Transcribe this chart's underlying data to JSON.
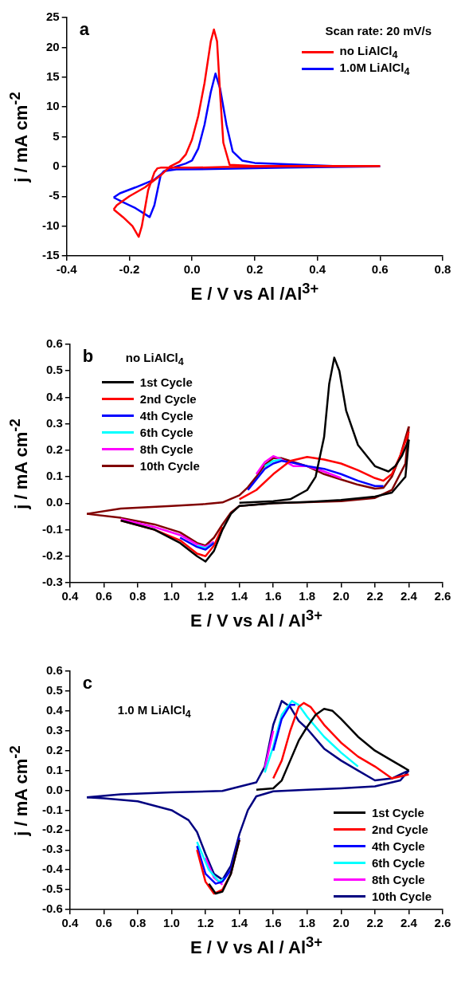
{
  "chart_data": [
    {
      "type": "line",
      "title": "a",
      "subtitle": "Scan rate: 20 mV/s",
      "xlabel": "E / V vs Al /Al$^{3+}$",
      "ylabel": "j / mA cm$^{-2}$",
      "xlim": [
        -0.4,
        0.8
      ],
      "xticks": [
        -0.4,
        -0.2,
        {
          "value": 0,
          "label": "0.0"
        },
        0.2,
        0.4,
        0.6,
        0.8
      ],
      "ylim": [
        -15,
        25
      ],
      "yticks": [
        -15,
        -10,
        -5,
        0,
        5,
        10,
        15,
        20,
        25
      ],
      "legend": "top right",
      "series": [
        {
          "name": "no LiAlCl$_{4}$",
          "color": "#ff0000",
          "x": [
            0.6,
            0.3,
            0.1,
            0,
            -0.1,
            -0.11,
            -0.12,
            -0.14,
            -0.16,
            -0.17,
            -0.19,
            -0.22,
            -0.25
          ],
          "values": [
            0.1,
            0,
            -0.1,
            -0.2,
            -0.2,
            -0.3,
            -1,
            -4,
            -10,
            -11.8,
            -10,
            -8.5,
            -7.2
          ]
        },
        {
          "color": "#ff0000",
          "x": [
            -0.25,
            -0.24,
            -0.2,
            -0.15,
            -0.1,
            -0.07,
            -0.04,
            -0.02,
            0,
            0.02,
            0.04,
            0.06,
            0.07,
            0.08,
            0.09,
            0.1,
            0.12,
            0.2,
            0.4,
            0.6
          ],
          "values": [
            -7.2,
            -6.5,
            -5,
            -3.5,
            -1.5,
            0,
            0.8,
            2,
            4.5,
            8.5,
            14,
            21,
            23,
            21,
            12,
            4,
            0.3,
            0.1,
            0.1,
            0.1
          ]
        },
        {
          "name": "1.0M LiAlCl$_{4}$",
          "color": "#0000ff",
          "x": [
            0.6,
            0.3,
            0.1,
            -0.05,
            -0.09,
            -0.1,
            -0.11,
            -0.12,
            -0.135,
            -0.15,
            -0.18,
            -0.22,
            -0.25
          ],
          "values": [
            0,
            -0.2,
            -0.4,
            -0.5,
            -0.8,
            -1.5,
            -4,
            -6.5,
            -8.5,
            -8,
            -7,
            -6,
            -5.2
          ]
        },
        {
          "color": "#0000ff",
          "x": [
            -0.25,
            -0.23,
            -0.18,
            -0.12,
            -0.08,
            -0.05,
            -0.02,
            0,
            0.02,
            0.04,
            0.06,
            0.075,
            0.09,
            0.11,
            0.13,
            0.16,
            0.2,
            0.3,
            0.45,
            0.6
          ],
          "values": [
            -5.2,
            -4.5,
            -3.5,
            -2.2,
            -0.5,
            0,
            0.5,
            1,
            3,
            7,
            12.5,
            15.6,
            13,
            7,
            2.5,
            1,
            0.6,
            0.4,
            0.1,
            0
          ]
        }
      ]
    },
    {
      "type": "line",
      "title": "b",
      "subtitle": "no LiAlCl$_{4}$",
      "xlabel": "E / V vs Al / Al$^{3+}$",
      "ylabel": "j / mA cm$^{-2}$",
      "xlim": [
        0.4,
        2.6
      ],
      "xticks": [
        0.4,
        0.6,
        0.8,
        {
          "value": 1,
          "label": "1.0"
        },
        1.2,
        1.4,
        1.6,
        1.8,
        {
          "value": 2,
          "label": "2.0"
        },
        2.2,
        2.4,
        2.6
      ],
      "ylim": [
        -0.3,
        0.6
      ],
      "yticks": [
        -0.3,
        -0.2,
        -0.1,
        {
          "value": 0,
          "label": "0.0"
        },
        0.1,
        0.2,
        0.3,
        0.4,
        0.5,
        0.6
      ],
      "legend": "top left",
      "series": [
        {
          "name": "1st Cycle",
          "color": "#000000",
          "x": [
            1.4,
            1.6,
            1.7,
            1.8,
            1.85,
            1.9,
            1.93,
            1.96,
            1.99,
            2.03,
            2.1,
            2.2,
            2.28,
            2.32,
            2.36,
            2.4
          ],
          "values": [
            0.002,
            0.008,
            0.015,
            0.05,
            0.1,
            0.25,
            0.45,
            0.55,
            0.5,
            0.35,
            0.22,
            0.14,
            0.12,
            0.14,
            0.18,
            0.24
          ]
        },
        {
          "color": "#000000",
          "x": [
            2.4,
            2.38,
            2.3,
            2.2,
            2.0,
            1.8,
            1.6,
            1.4,
            1.35,
            1.3,
            1.25,
            1.2,
            1.15,
            1.05,
            0.9,
            0.7
          ],
          "values": [
            0.24,
            0.1,
            0.04,
            0.025,
            0.012,
            0.005,
            0,
            -0.01,
            -0.04,
            -0.1,
            -0.18,
            -0.22,
            -0.2,
            -0.15,
            -0.1,
            -0.065
          ]
        },
        {
          "name": "2nd Cycle",
          "color": "#ff0000",
          "x": [
            1.4,
            1.5,
            1.6,
            1.7,
            1.8,
            1.9,
            2.0,
            2.1,
            2.2,
            2.25,
            2.3,
            2.35,
            2.4
          ],
          "values": [
            0.015,
            0.05,
            0.11,
            0.16,
            0.175,
            0.165,
            0.15,
            0.125,
            0.095,
            0.085,
            0.11,
            0.18,
            0.27
          ]
        },
        {
          "color": "#ff0000",
          "x": [
            1.3,
            1.25,
            1.2,
            1.15,
            1.05,
            0.9,
            0.7
          ],
          "values": [
            -0.09,
            -0.16,
            -0.2,
            -0.19,
            -0.14,
            -0.1,
            -0.065
          ]
        },
        {
          "name": "4th Cycle",
          "color": "#0000ff",
          "x": [
            1.45,
            1.5,
            1.55,
            1.6,
            1.65,
            1.7,
            1.8,
            1.9,
            2.0,
            2.1,
            2.2,
            2.25
          ],
          "values": [
            0.05,
            0.09,
            0.13,
            0.15,
            0.16,
            0.155,
            0.14,
            0.13,
            0.11,
            0.085,
            0.065,
            0.065
          ]
        },
        {
          "color": "#0000ff",
          "x": [
            1.25,
            1.2,
            1.15,
            1.05
          ],
          "values": [
            -0.15,
            -0.175,
            -0.165,
            -0.13
          ]
        },
        {
          "name": "6th Cycle",
          "color": "#00ffff",
          "x": [
            1.55,
            1.6,
            1.65
          ],
          "values": [
            0.14,
            0.16,
            0.165
          ]
        },
        {
          "color": "#00ffff",
          "x": [
            1.25,
            1.2,
            1.15
          ],
          "values": [
            -0.15,
            -0.17,
            -0.16
          ]
        },
        {
          "name": "8th Cycle",
          "color": "#ff00ff",
          "x": [
            1.5,
            1.55,
            1.6,
            1.65,
            1.72,
            1.8,
            1.9,
            2.0
          ],
          "values": [
            0.11,
            0.155,
            0.178,
            0.165,
            0.14,
            0.14,
            0.12,
            0.095
          ]
        },
        {
          "color": "#ff00ff",
          "x": [
            1.25,
            1.2,
            1.15,
            1.05,
            0.9,
            0.7
          ],
          "values": [
            -0.145,
            -0.165,
            -0.155,
            -0.12,
            -0.09,
            -0.06
          ]
        },
        {
          "name": "10th Cycle",
          "color": "#800000",
          "x": [
            0.5,
            0.7,
            1.0,
            1.2,
            1.3,
            1.4,
            1.45,
            1.5,
            1.55,
            1.6,
            1.65,
            1.7,
            1.8,
            1.9,
            2.0,
            2.1,
            2.2,
            2.25,
            2.3,
            2.35,
            2.4
          ],
          "values": [
            -0.04,
            -0.02,
            -0.01,
            -0.003,
            0.003,
            0.03,
            0.06,
            0.1,
            0.145,
            0.17,
            0.17,
            0.16,
            0.14,
            0.11,
            0.09,
            0.07,
            0.055,
            0.058,
            0.1,
            0.18,
            0.29
          ]
        },
        {
          "color": "#800000",
          "x": [
            2.4,
            2.38,
            2.3,
            2.2,
            2.0,
            1.8,
            1.6,
            1.4,
            1.35,
            1.3,
            1.25,
            1.2,
            1.15,
            1.05,
            0.9,
            0.7,
            0.5
          ],
          "values": [
            0.29,
            0.15,
            0.05,
            0.02,
            0.008,
            0.004,
            0,
            -0.01,
            -0.035,
            -0.08,
            -0.13,
            -0.16,
            -0.15,
            -0.11,
            -0.08,
            -0.055,
            -0.04
          ]
        }
      ]
    },
    {
      "type": "line",
      "title": "c",
      "subtitle": "1.0 M LiAlCl$_{4}$",
      "xlabel": "E / V vs Al / Al$^{3+}$",
      "ylabel": "j / mA cm$^{-2}$",
      "xlim": [
        0.4,
        2.6
      ],
      "xticks": [
        0.4,
        0.6,
        0.8,
        {
          "value": 1,
          "label": "1.0"
        },
        1.2,
        1.4,
        1.6,
        1.8,
        {
          "value": 2,
          "label": "2.0"
        },
        2.2,
        2.4,
        2.6
      ],
      "ylim": [
        -0.6,
        0.6
      ],
      "yticks": [
        -0.6,
        -0.5,
        -0.4,
        -0.3,
        -0.2,
        -0.1,
        {
          "value": 0,
          "label": "0.0"
        },
        0.1,
        0.2,
        0.3,
        0.4,
        0.5,
        0.6
      ],
      "legend": "bottom right",
      "series": [
        {
          "name": "1st Cycle",
          "color": "#000000",
          "x": [
            1.5,
            1.6,
            1.65,
            1.7,
            1.75,
            1.8,
            1.85,
            1.9,
            1.95,
            2.0,
            2.1,
            2.2,
            2.3,
            2.4
          ],
          "values": [
            0.003,
            0.01,
            0.05,
            0.15,
            0.25,
            0.32,
            0.38,
            0.41,
            0.4,
            0.36,
            0.27,
            0.2,
            0.15,
            0.1
          ]
        },
        {
          "color": "#000000",
          "x": [
            1.4,
            1.35,
            1.3,
            1.26,
            1.22
          ],
          "values": [
            -0.25,
            -0.42,
            -0.51,
            -0.52,
            -0.47
          ]
        },
        {
          "name": "2nd Cycle",
          "color": "#ff0000",
          "x": [
            1.6,
            1.65,
            1.7,
            1.75,
            1.78,
            1.82,
            1.9,
            2.0,
            2.1,
            2.2,
            2.3,
            2.4
          ],
          "values": [
            0.06,
            0.15,
            0.3,
            0.42,
            0.44,
            0.42,
            0.33,
            0.24,
            0.17,
            0.12,
            0.06,
            0.08
          ]
        },
        {
          "color": "#ff0000",
          "x": [
            1.4,
            1.35,
            1.3,
            1.25,
            1.2,
            1.15
          ],
          "values": [
            -0.25,
            -0.42,
            -0.5,
            -0.52,
            -0.46,
            -0.3
          ]
        },
        {
          "name": "4th Cycle",
          "color": "#0000ff",
          "x": [
            1.6,
            1.65,
            1.7,
            1.73
          ],
          "values": [
            0.2,
            0.36,
            0.43,
            0.43
          ]
        },
        {
          "color": "#0000ff",
          "x": [
            1.4,
            1.35,
            1.3,
            1.26,
            1.2,
            1.15
          ],
          "values": [
            -0.24,
            -0.4,
            -0.46,
            -0.47,
            -0.42,
            -0.28
          ]
        },
        {
          "name": "6th Cycle",
          "color": "#00ffff",
          "x": [
            1.55,
            1.6,
            1.65,
            1.71,
            1.75,
            1.8,
            1.9,
            2.0,
            2.1
          ],
          "values": [
            0.09,
            0.22,
            0.38,
            0.45,
            0.43,
            0.37,
            0.27,
            0.19,
            0.12
          ]
        },
        {
          "color": "#00ffff",
          "x": [
            1.32,
            1.28,
            1.22,
            1.15
          ],
          "values": [
            -0.44,
            -0.46,
            -0.4,
            -0.26
          ]
        },
        {
          "name": "8th Cycle",
          "color": "#ff00ff",
          "x": [
            1.55,
            1.6
          ],
          "values": [
            0.11,
            0.3
          ]
        },
        {
          "color": "#ff00ff",
          "x": [
            1.3,
            1.25,
            1.2
          ],
          "values": [
            -0.475,
            -0.44,
            -0.34
          ]
        },
        {
          "name": "10th Cycle",
          "color": "#000080",
          "x": [
            0.5,
            0.7,
            1.0,
            1.3,
            1.5,
            1.55,
            1.6,
            1.65,
            1.7,
            1.75,
            1.8,
            1.9,
            2.0,
            2.1,
            2.2,
            2.3,
            2.4
          ],
          "values": [
            -0.035,
            -0.02,
            -0.01,
            -0.003,
            0.04,
            0.12,
            0.33,
            0.45,
            0.42,
            0.35,
            0.31,
            0.21,
            0.15,
            0.1,
            0.05,
            0.06,
            0.1
          ]
        },
        {
          "color": "#000080",
          "x": [
            2.4,
            2.35,
            2.2,
            2.0,
            1.8,
            1.6,
            1.5,
            1.45,
            1.4,
            1.35,
            1.3,
            1.25,
            1.2,
            1.15,
            1.1,
            1.0,
            0.8,
            0.6,
            0.5
          ],
          "values": [
            0.1,
            0.05,
            0.02,
            0.01,
            0.003,
            -0.005,
            -0.03,
            -0.1,
            -0.22,
            -0.38,
            -0.45,
            -0.42,
            -0.32,
            -0.21,
            -0.15,
            -0.1,
            -0.055,
            -0.04,
            -0.035
          ]
        }
      ]
    }
  ]
}
